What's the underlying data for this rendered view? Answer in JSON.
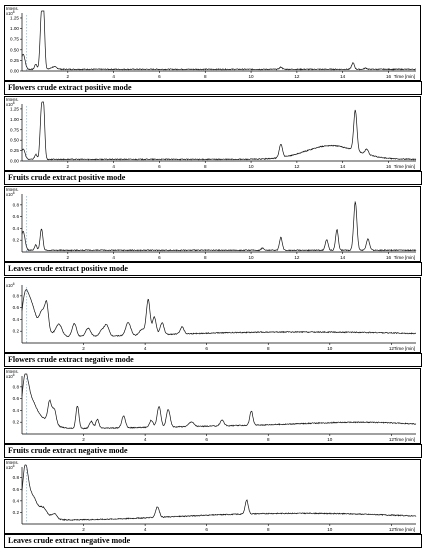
{
  "chart_data": [
    {
      "type": "line",
      "caption": "Flowers crude extract positive mode",
      "ylabel": "Intens.",
      "yscale_label": "x10",
      "yscale_exp": "8",
      "xlabel": "Time [min]",
      "xlim": [
        0,
        17.2
      ],
      "ylim": [
        0,
        1.32
      ],
      "yticks": [
        "0.00",
        "0.25",
        "0.50",
        "0.75",
        "1.00",
        "1.25"
      ],
      "ytick_values": [
        0,
        0.25,
        0.5,
        0.75,
        1.0,
        1.25
      ],
      "xticks": [
        "2",
        "4",
        "6",
        "8",
        "10",
        "12",
        "14",
        "16"
      ],
      "xtick_values": [
        2,
        4,
        6,
        8,
        10,
        12,
        14,
        16
      ],
      "baseline": 0.04,
      "trace_color": "#111111",
      "peaks": [
        [
          0.05,
          0.36,
          0.08
        ],
        [
          0.6,
          0.12,
          0.05
        ],
        [
          0.85,
          1.27,
          0.06
        ],
        [
          0.95,
          1.13,
          0.05
        ],
        [
          1.4,
          0.06,
          0.12
        ],
        [
          11.3,
          0.05,
          0.06
        ],
        [
          14.45,
          0.15,
          0.06
        ],
        [
          15.0,
          0.03,
          0.06
        ]
      ],
      "humps": []
    },
    {
      "type": "line",
      "caption": "Fruits crude extract positive mode",
      "ylabel": "Intens.",
      "yscale_label": "x10",
      "yscale_exp": "8",
      "xlabel": "Time [min]",
      "xlim": [
        0,
        17.2
      ],
      "ylim": [
        0,
        1.32
      ],
      "yticks": [
        "0.00",
        "0.25",
        "0.50",
        "0.75",
        "1.00",
        "1.25"
      ],
      "ytick_values": [
        0,
        0.25,
        0.5,
        0.75,
        1.0,
        1.25
      ],
      "xticks": [
        "2",
        "4",
        "6",
        "8",
        "10",
        "12",
        "14",
        "16"
      ],
      "xtick_values": [
        2,
        4,
        6,
        8,
        10,
        12,
        14,
        16
      ],
      "baseline": 0.04,
      "trace_color": "#111111",
      "peaks": [
        [
          0.05,
          0.25,
          0.08
        ],
        [
          0.6,
          0.12,
          0.05
        ],
        [
          0.85,
          1.16,
          0.06
        ],
        [
          0.95,
          1.05,
          0.05
        ],
        [
          11.3,
          0.32,
          0.07
        ],
        [
          14.55,
          0.97,
          0.07
        ],
        [
          15.05,
          0.13,
          0.07
        ]
      ],
      "humps": [
        [
          13.5,
          0.33,
          1.1
        ]
      ]
    },
    {
      "type": "line",
      "caption": "Leaves crude extract positive mode",
      "ylabel": "Intens.",
      "yscale_label": "x10",
      "yscale_exp": "8",
      "xlabel": "Time [min]",
      "xlim": [
        0,
        17.2
      ],
      "ylim": [
        0,
        0.95
      ],
      "yticks": [
        "0.2",
        "0.4",
        "0.6",
        "0.8"
      ],
      "ytick_values": [
        0.2,
        0.4,
        0.6,
        0.8
      ],
      "xticks": [
        "2",
        "4",
        "6",
        "8",
        "10",
        "12",
        "14",
        "16"
      ],
      "xtick_values": [
        2,
        4,
        6,
        8,
        10,
        12,
        14,
        16
      ],
      "baseline": 0.03,
      "trace_color": "#111111",
      "peaks": [
        [
          0.05,
          0.32,
          0.08
        ],
        [
          0.6,
          0.09,
          0.05
        ],
        [
          0.85,
          0.36,
          0.06
        ],
        [
          10.5,
          0.04,
          0.05
        ],
        [
          11.3,
          0.22,
          0.06
        ],
        [
          13.3,
          0.18,
          0.06
        ],
        [
          13.75,
          0.35,
          0.06
        ],
        [
          14.55,
          0.82,
          0.07
        ],
        [
          15.1,
          0.19,
          0.07
        ]
      ],
      "humps": []
    },
    {
      "type": "line",
      "caption": "Flowers crude extract negative mode",
      "ylabel": "",
      "yscale_label": "x10",
      "yscale_exp": "6",
      "xlabel": "Time [min]",
      "xlim": [
        0,
        12.8
      ],
      "ylim": [
        0,
        0.95
      ],
      "yticks": [
        "0.2",
        "0.4",
        "0.6",
        "0.8"
      ],
      "ytick_values": [
        0.2,
        0.4,
        0.6,
        0.8
      ],
      "xticks": [
        "2",
        "4",
        "6",
        "8",
        "10",
        "12"
      ],
      "xtick_values": [
        2,
        4,
        6,
        8,
        10,
        12
      ],
      "baseline": 0.1,
      "trace_color": "#111111",
      "peaks": [
        [
          0.1,
          0.55,
          0.1
        ],
        [
          0.3,
          0.35,
          0.12
        ],
        [
          0.65,
          0.28,
          0.08
        ],
        [
          0.8,
          0.45,
          0.06
        ],
        [
          1.2,
          0.2,
          0.1
        ],
        [
          1.7,
          0.22,
          0.07
        ],
        [
          2.15,
          0.14,
          0.08
        ],
        [
          2.6,
          0.1,
          0.08
        ],
        [
          2.75,
          0.18,
          0.07
        ],
        [
          3.45,
          0.22,
          0.08
        ],
        [
          3.9,
          0.1,
          0.08
        ],
        [
          4.1,
          0.6,
          0.06
        ],
        [
          4.3,
          0.3,
          0.06
        ],
        [
          4.55,
          0.2,
          0.06
        ],
        [
          5.2,
          0.12,
          0.06
        ]
      ],
      "humps": [
        [
          0.4,
          0.2,
          0.35
        ],
        [
          6.5,
          0.05,
          2.5
        ],
        [
          11.0,
          0.07,
          3.0
        ]
      ]
    },
    {
      "type": "line",
      "caption": "Fruits crude extract negative mode",
      "ylabel": "Intens.",
      "yscale_label": "x10",
      "yscale_exp": "6",
      "xlabel": "Time [min]",
      "xlim": [
        0,
        12.8
      ],
      "ylim": [
        0,
        0.95
      ],
      "yticks": [
        "0.2",
        "0.4",
        "0.6",
        "0.8"
      ],
      "ytick_values": [
        0.2,
        0.4,
        0.6,
        0.8
      ],
      "xticks": [
        "2",
        "4",
        "6",
        "8",
        "10",
        "12"
      ],
      "xtick_values": [
        2,
        4,
        6,
        8,
        10,
        12
      ],
      "baseline": 0.08,
      "trace_color": "#111111",
      "peaks": [
        [
          0.1,
          0.7,
          0.1
        ],
        [
          0.3,
          0.3,
          0.15
        ],
        [
          0.9,
          0.35,
          0.06
        ],
        [
          1.05,
          0.25,
          0.06
        ],
        [
          1.8,
          0.38,
          0.05
        ],
        [
          2.25,
          0.12,
          0.06
        ],
        [
          2.45,
          0.15,
          0.05
        ],
        [
          3.3,
          0.2,
          0.06
        ],
        [
          4.2,
          0.12,
          0.06
        ],
        [
          4.45,
          0.35,
          0.06
        ],
        [
          4.75,
          0.3,
          0.06
        ],
        [
          5.5,
          0.08,
          0.08
        ],
        [
          6.5,
          0.1,
          0.06
        ],
        [
          7.45,
          0.24,
          0.05
        ]
      ],
      "humps": [
        [
          0.5,
          0.2,
          0.4
        ],
        [
          8.0,
          0.06,
          3.5
        ],
        [
          11.5,
          0.08,
          2.0
        ]
      ]
    },
    {
      "type": "line",
      "caption": "Leaves crude extract negative mode",
      "ylabel": "Intens.",
      "yscale_label": "x10",
      "yscale_exp": "6",
      "xlabel": "Time [min]",
      "xlim": [
        0,
        12.8
      ],
      "ylim": [
        0,
        0.95
      ],
      "yticks": [
        "0.2",
        "0.4",
        "0.6",
        "0.8"
      ],
      "ytick_values": [
        0.2,
        0.4,
        0.6,
        0.8
      ],
      "xticks": [
        "2",
        "4",
        "6",
        "8",
        "10",
        "12"
      ],
      "xtick_values": [
        2,
        4,
        6,
        8,
        10,
        12
      ],
      "baseline": 0.06,
      "trace_color": "#111111",
      "peaks": [
        [
          0.1,
          0.75,
          0.09
        ],
        [
          0.3,
          0.3,
          0.15
        ],
        [
          0.7,
          0.1,
          0.1
        ],
        [
          1.05,
          0.08,
          0.08
        ],
        [
          4.4,
          0.18,
          0.06
        ],
        [
          7.3,
          0.24,
          0.05
        ]
      ],
      "humps": [
        [
          0.45,
          0.15,
          0.35
        ],
        [
          6.5,
          0.06,
          2.5
        ],
        [
          10.5,
          0.1,
          3.0
        ]
      ]
    }
  ]
}
